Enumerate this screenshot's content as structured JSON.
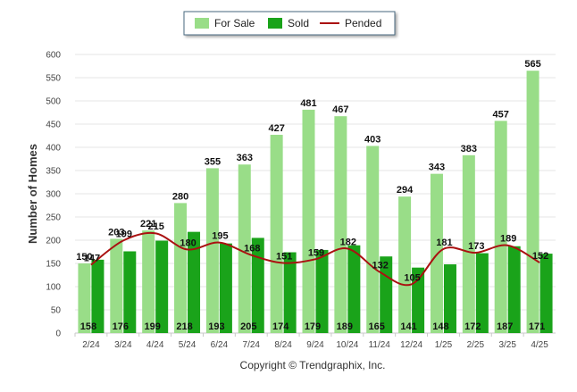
{
  "chart_data": {
    "type": "bar",
    "title": "",
    "xlabel": "",
    "ylabel": "Number of Homes",
    "ylim": [
      0,
      600
    ],
    "yticks": [
      0,
      50,
      100,
      150,
      200,
      250,
      300,
      350,
      400,
      450,
      500,
      550,
      600
    ],
    "grid": true,
    "legend_position": "top-center",
    "categories": [
      "2/24",
      "3/24",
      "4/24",
      "5/24",
      "6/24",
      "7/24",
      "8/24",
      "9/24",
      "10/24",
      "11/24",
      "12/24",
      "1/25",
      "2/25",
      "3/25",
      "4/25"
    ],
    "series": [
      {
        "name": "For Sale",
        "kind": "bar",
        "color": "#99dd88",
        "values": [
          150,
          203,
          221,
          280,
          355,
          363,
          427,
          481,
          467,
          403,
          294,
          343,
          383,
          457,
          565
        ]
      },
      {
        "name": "Sold",
        "kind": "bar",
        "color": "#1aa31a",
        "values": [
          158,
          176,
          199,
          218,
          193,
          205,
          174,
          179,
          189,
          165,
          141,
          148,
          172,
          187,
          171
        ]
      },
      {
        "name": "Pended",
        "kind": "line",
        "color": "#aa1111",
        "values": [
          147,
          199,
          215,
          180,
          195,
          168,
          151,
          159,
          182,
          132,
          105,
          181,
          173,
          189,
          152
        ]
      }
    ],
    "copyright": "Copyright © Trendgraphix, Inc."
  }
}
